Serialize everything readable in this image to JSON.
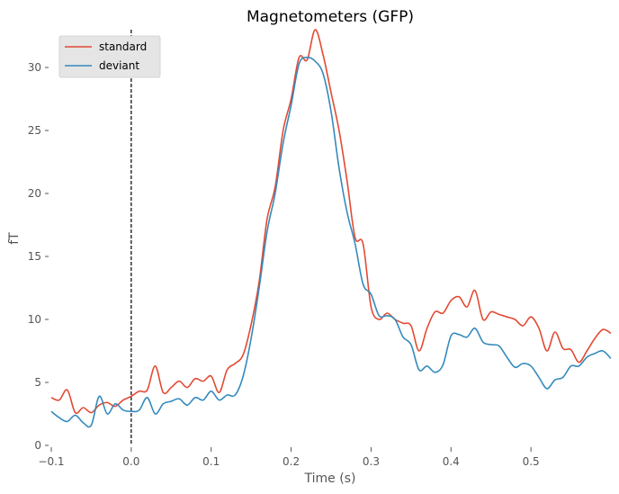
{
  "chart_data": {
    "type": "line",
    "title": "Magnetometers (GFP)",
    "xlabel": "Time (s)",
    "ylabel": "fT",
    "xlim": [
      -0.1,
      0.6
    ],
    "ylim": [
      0,
      33
    ],
    "xticks": [
      -0.1,
      0.0,
      0.1,
      0.2,
      0.3,
      0.4,
      0.5
    ],
    "xtick_labels": [
      "−0.1",
      "0.0",
      "0.1",
      "0.2",
      "0.3",
      "0.4",
      "0.5"
    ],
    "yticks": [
      0,
      5,
      10,
      15,
      20,
      25,
      30
    ],
    "ytick_labels": [
      "0",
      "5",
      "10",
      "15",
      "20",
      "25",
      "30"
    ],
    "grid": false,
    "legend_position": "top-left",
    "event_marker_x": 0.0,
    "x": [
      -0.1,
      -0.09,
      -0.08,
      -0.07,
      -0.06,
      -0.05,
      -0.04,
      -0.03,
      -0.02,
      -0.01,
      0.0,
      0.01,
      0.02,
      0.03,
      0.04,
      0.05,
      0.06,
      0.07,
      0.08,
      0.09,
      0.1,
      0.11,
      0.12,
      0.13,
      0.14,
      0.15,
      0.16,
      0.17,
      0.18,
      0.19,
      0.2,
      0.21,
      0.22,
      0.23,
      0.24,
      0.25,
      0.26,
      0.27,
      0.28,
      0.29,
      0.3,
      0.31,
      0.32,
      0.33,
      0.34,
      0.35,
      0.36,
      0.37,
      0.38,
      0.39,
      0.4,
      0.41,
      0.42,
      0.43,
      0.44,
      0.45,
      0.46,
      0.47,
      0.48,
      0.49,
      0.5,
      0.51,
      0.52,
      0.53,
      0.54,
      0.55,
      0.56,
      0.57,
      0.58,
      0.59,
      0.6
    ],
    "series": [
      {
        "name": "standard",
        "color": "#E24A33",
        "values": [
          3.8,
          3.6,
          4.4,
          2.6,
          3.0,
          2.6,
          3.2,
          3.4,
          3.1,
          3.6,
          3.9,
          4.3,
          4.4,
          6.3,
          4.2,
          4.6,
          5.1,
          4.6,
          5.3,
          5.1,
          5.5,
          4.2,
          6.0,
          6.5,
          7.2,
          9.6,
          13.0,
          18.0,
          20.5,
          25.0,
          27.5,
          30.8,
          30.6,
          33.0,
          31.0,
          28.0,
          25.0,
          21.0,
          16.5,
          16.0,
          11.0,
          10.0,
          10.5,
          10.0,
          9.7,
          9.5,
          7.5,
          9.3,
          10.6,
          10.5,
          11.5,
          11.8,
          11.0,
          12.3,
          10.0,
          10.6,
          10.4,
          10.2,
          10.0,
          9.5,
          10.2,
          9.3,
          7.5,
          9.0,
          7.7,
          7.6,
          6.6,
          7.5,
          8.5,
          9.2,
          8.9
        ]
      },
      {
        "name": "deviant",
        "color": "#348ABD",
        "values": [
          2.7,
          2.2,
          1.9,
          2.4,
          1.8,
          1.6,
          3.9,
          2.5,
          3.3,
          2.8,
          2.7,
          2.8,
          3.8,
          2.5,
          3.3,
          3.5,
          3.7,
          3.2,
          3.8,
          3.6,
          4.3,
          3.6,
          4.0,
          4.0,
          5.5,
          8.5,
          12.5,
          17.0,
          20.0,
          24.0,
          27.0,
          30.3,
          30.8,
          30.5,
          29.5,
          26.5,
          22.0,
          18.5,
          16.0,
          12.8,
          12.0,
          10.3,
          10.3,
          10.0,
          8.6,
          8.0,
          6.0,
          6.3,
          5.8,
          6.4,
          8.7,
          8.8,
          8.6,
          9.3,
          8.2,
          8.0,
          7.9,
          7.0,
          6.2,
          6.5,
          6.3,
          5.4,
          4.5,
          5.2,
          5.4,
          6.3,
          6.3,
          7.0,
          7.3,
          7.5,
          6.9
        ]
      }
    ]
  }
}
